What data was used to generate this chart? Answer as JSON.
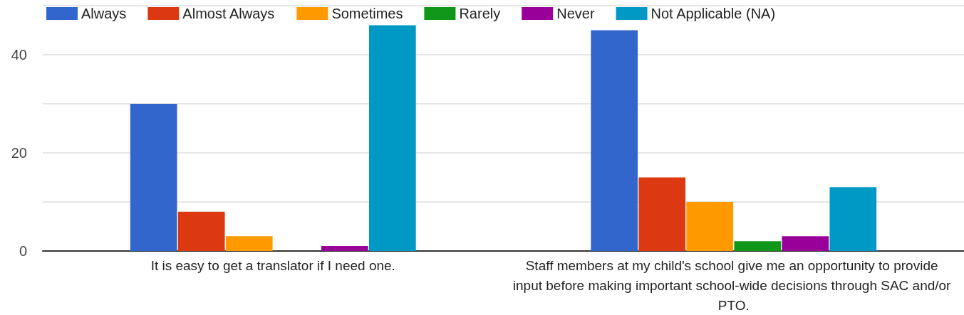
{
  "chart_data": {
    "type": "bar",
    "categories": [
      "It is easy to get a translator if I need one.",
      "Staff members at my child's school give me an opportunity to provide input before making important school-wide decisions through SAC and/or PTO."
    ],
    "series": [
      {
        "name": "Always",
        "color": "#3366cc",
        "values": [
          30,
          45
        ]
      },
      {
        "name": "Almost Always",
        "color": "#dc3912",
        "values": [
          8,
          15
        ]
      },
      {
        "name": "Sometimes",
        "color": "#ff9900",
        "values": [
          3,
          10
        ]
      },
      {
        "name": "Rarely",
        "color": "#109618",
        "values": [
          0,
          2
        ]
      },
      {
        "name": "Never",
        "color": "#990099",
        "values": [
          1,
          3
        ]
      },
      {
        "name": "Not Applicable (NA)",
        "color": "#0099c6",
        "values": [
          46,
          13
        ]
      }
    ],
    "ylim": [
      0,
      50
    ],
    "yticks": [
      0,
      {
        "value": 10,
        "label": null
      },
      20,
      {
        "value": 30,
        "label": null
      },
      40,
      {
        "value": 50,
        "label": null
      }
    ],
    "grid": "y",
    "legend": "top left"
  }
}
